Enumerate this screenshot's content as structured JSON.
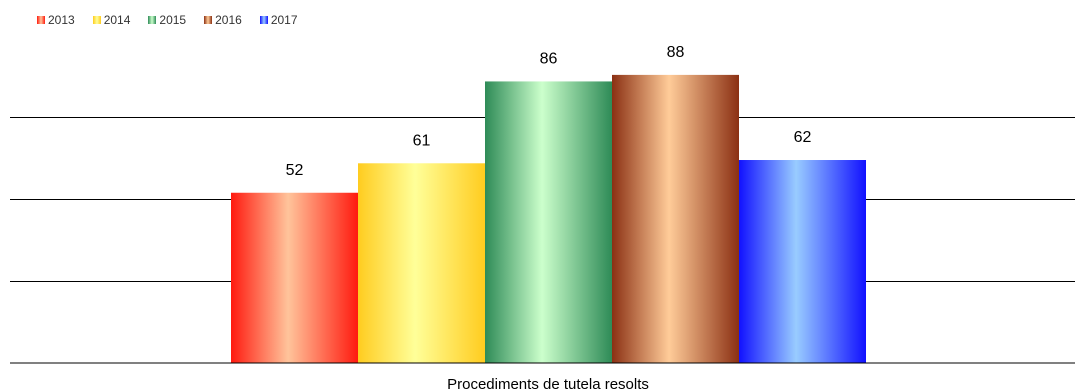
{
  "chart_data": {
    "type": "bar",
    "categories": [
      "Procediments de tutela resolts"
    ],
    "series": [
      {
        "name": "2013",
        "values": [
          52
        ],
        "colors": {
          "edge": "#ff1a0f",
          "mid": "#ffc49b"
        }
      },
      {
        "name": "2014",
        "values": [
          61
        ],
        "colors": {
          "edge": "#ffcc1f",
          "mid": "#ffff99"
        }
      },
      {
        "name": "2015",
        "values": [
          86
        ],
        "colors": {
          "edge": "#2e8b57",
          "mid": "#ccffcc"
        }
      },
      {
        "name": "2016",
        "values": [
          88
        ],
        "colors": {
          "edge": "#8b3013",
          "mid": "#ffcc99"
        }
      },
      {
        "name": "2017",
        "values": [
          62
        ],
        "colors": {
          "edge": "#1111ff",
          "mid": "#99ccff"
        }
      }
    ],
    "xlabel": "Procediments de tutela resolts",
    "ylabel": "",
    "ylim": [
      0,
      100
    ],
    "gridlines": [
      25,
      50,
      75
    ],
    "grid": true,
    "legend": "top-left",
    "data_labels": true
  }
}
